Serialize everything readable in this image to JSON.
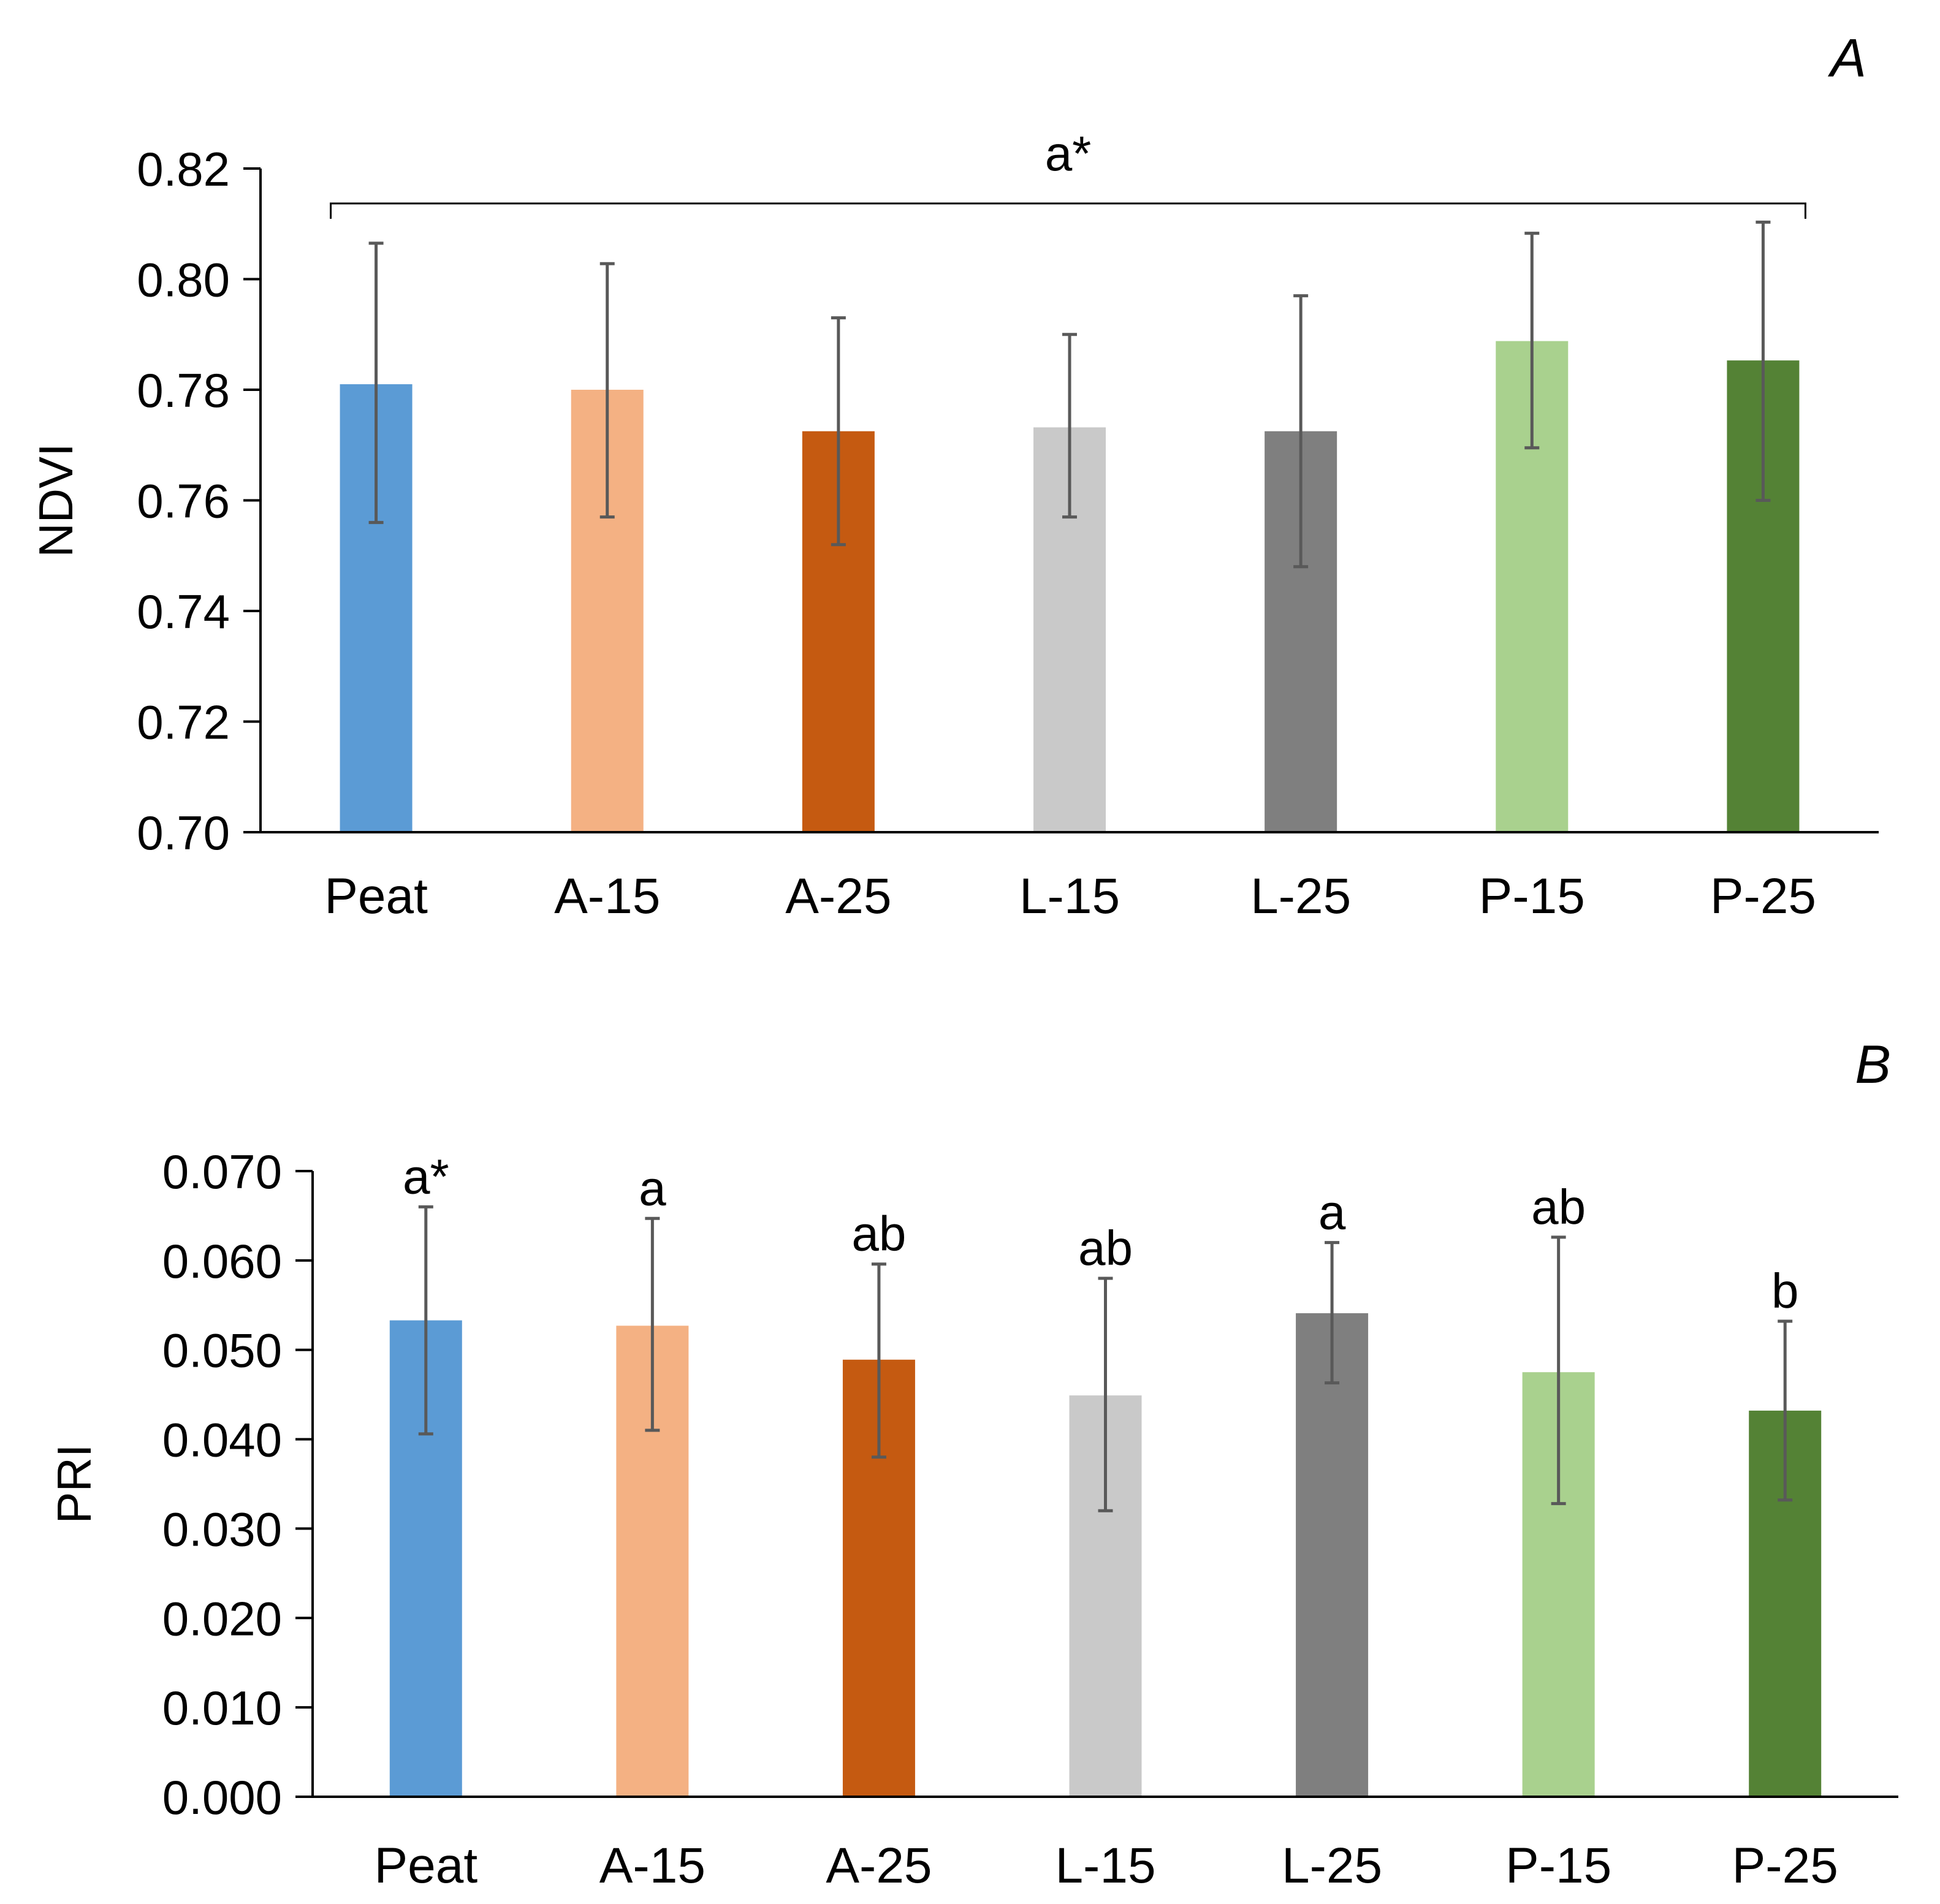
{
  "chart_data": [
    {
      "type": "bar",
      "panel": "A",
      "ylabel": "NDVI",
      "xlabel": "",
      "ylim": [
        0.7,
        0.82
      ],
      "yticks": [
        "0.70",
        "0.72",
        "0.74",
        "0.76",
        "0.78",
        "0.80",
        "0.82"
      ],
      "categories": [
        "Peat",
        "A-15",
        "A-25",
        "L-15",
        "L-25",
        "P-15",
        "P-25"
      ],
      "values": [
        0.781,
        0.78,
        0.7725,
        0.7732,
        0.7725,
        0.7888,
        0.7853
      ],
      "error_low": [
        0.756,
        0.757,
        0.752,
        0.757,
        0.748,
        0.7695,
        0.76
      ],
      "error_high": [
        0.8065,
        0.8028,
        0.793,
        0.79,
        0.797,
        0.8083,
        0.8103
      ],
      "colors": [
        "#5B9BD5",
        "#F4B183",
        "#C55A11",
        "#C9C9C9",
        "#7F7F7F",
        "#A9D18E",
        "#548235"
      ],
      "group_annotation": "a*",
      "significance_letters": []
    },
    {
      "type": "bar",
      "panel": "B",
      "ylabel": "PRI",
      "xlabel": "",
      "ylim": [
        0.0,
        0.07
      ],
      "yticks": [
        "0.000",
        "0.010",
        "0.020",
        "0.030",
        "0.040",
        "0.050",
        "0.060",
        "0.070"
      ],
      "categories": [
        "Peat",
        "A-15",
        "A-25",
        "L-15",
        "L-25",
        "P-15",
        "P-25"
      ],
      "values": [
        0.0533,
        0.0527,
        0.0489,
        0.0449,
        0.0541,
        0.0475,
        0.0432
      ],
      "error_low": [
        0.0406,
        0.041,
        0.038,
        0.032,
        0.0463,
        0.0328,
        0.0332
      ],
      "error_high": [
        0.066,
        0.0647,
        0.0596,
        0.058,
        0.062,
        0.0626,
        0.0532
      ],
      "colors": [
        "#5B9BD5",
        "#F4B183",
        "#C55A11",
        "#C9C9C9",
        "#7F7F7F",
        "#A9D18E",
        "#548235"
      ],
      "group_annotation": "",
      "significance_letters": [
        "a*",
        "a",
        "ab",
        "ab",
        "a",
        "ab",
        "b"
      ]
    }
  ]
}
